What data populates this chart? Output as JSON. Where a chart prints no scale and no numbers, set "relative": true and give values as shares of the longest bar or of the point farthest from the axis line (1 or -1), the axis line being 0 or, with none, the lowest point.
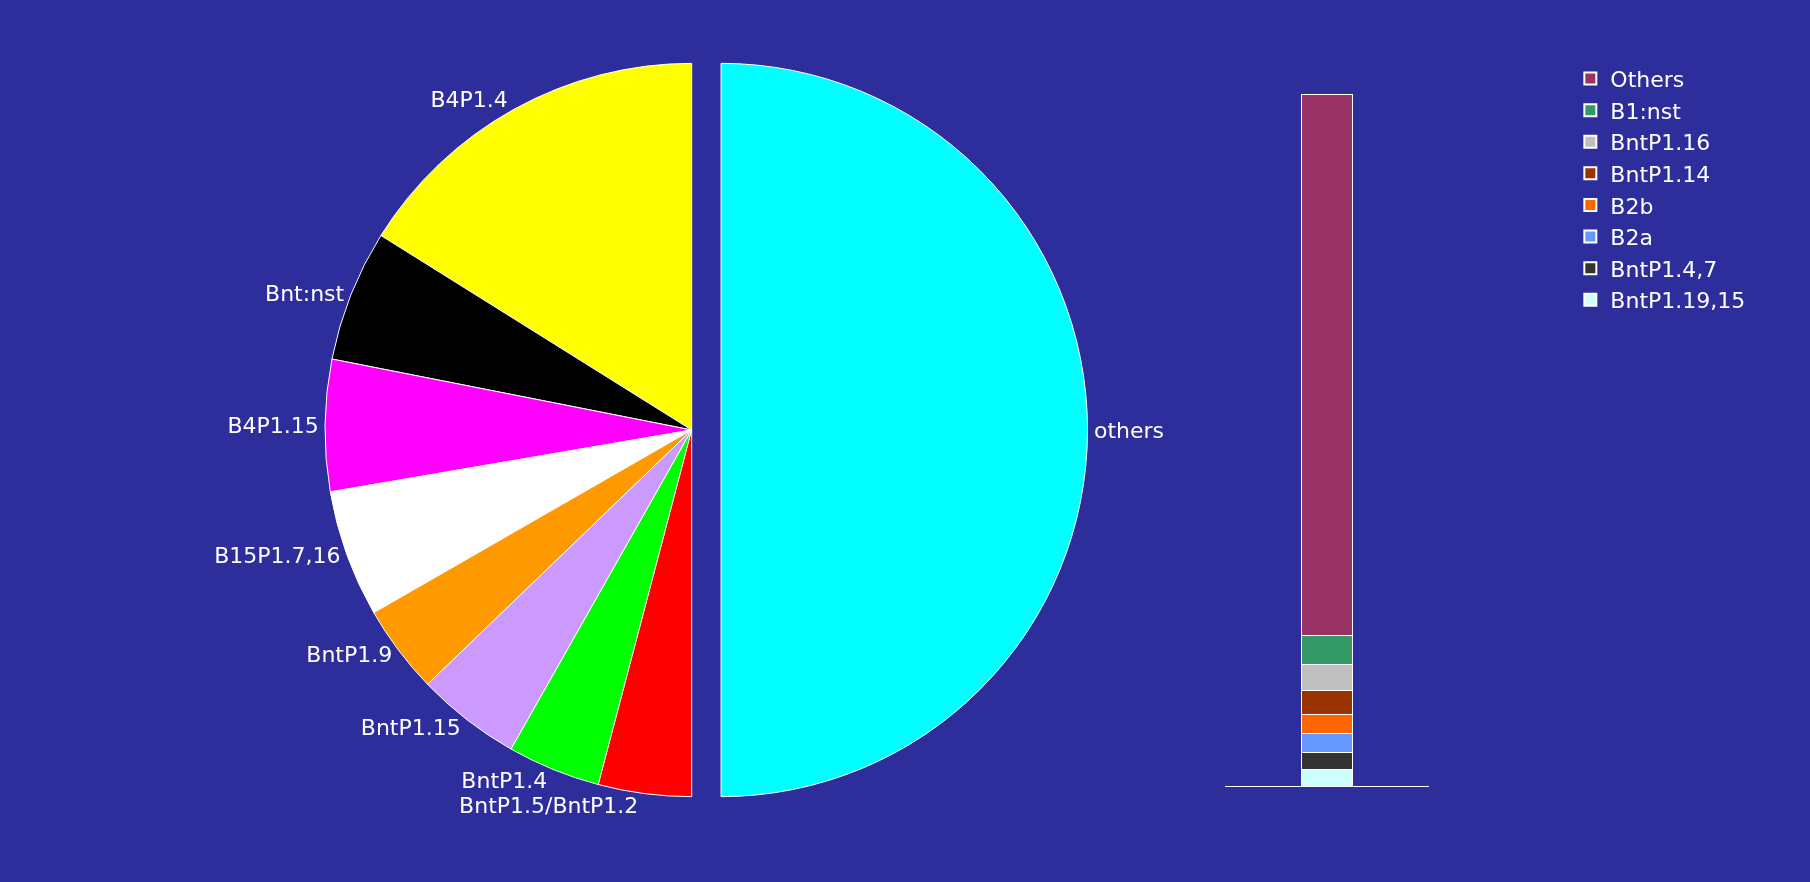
{
  "chart_data": [
    {
      "type": "pie",
      "categories": [
        "B4P1.4",
        "Bnt:nst",
        "B4P1.15",
        "B15P1.7,16",
        "BntP1.9",
        "BntP1.15",
        "BntP1.4",
        "BntP1.5/BntP1.2",
        "others"
      ],
      "values": [
        16.1,
        5.8,
        5.8,
        5.6,
        3.9,
        4.6,
        4.1,
        4.1,
        50.0
      ],
      "colors": [
        "#ffff00",
        "#000000",
        "#ff00ff",
        "#ffffff",
        "#ff9900",
        "#cc99ff",
        "#00ff00",
        "#ff0000",
        "#00ffff"
      ],
      "legend": false
    },
    {
      "type": "bar",
      "stacked": true,
      "relative": true,
      "categories": [
        null
      ],
      "legend": "right",
      "series": [
        {
          "name": "BntP1.19,15",
          "color": "#ccffff",
          "values": [
            0.025
          ]
        },
        {
          "name": "BntP1.4,7",
          "color": "#333333",
          "values": [
            0.024
          ]
        },
        {
          "name": "B2a",
          "color": "#6699ff",
          "values": [
            0.027
          ]
        },
        {
          "name": "B2b",
          "color": "#ff6600",
          "values": [
            0.028
          ]
        },
        {
          "name": "BntP1.14",
          "color": "#993300",
          "values": [
            0.034
          ]
        },
        {
          "name": "BntP1.16",
          "color": "#c0c0c0",
          "values": [
            0.038
          ]
        },
        {
          "name": "B1:nst",
          "color": "#339966",
          "values": [
            0.042
          ]
        },
        {
          "name": "Others",
          "color": "#993366",
          "values": [
            0.782
          ]
        }
      ]
    }
  ]
}
